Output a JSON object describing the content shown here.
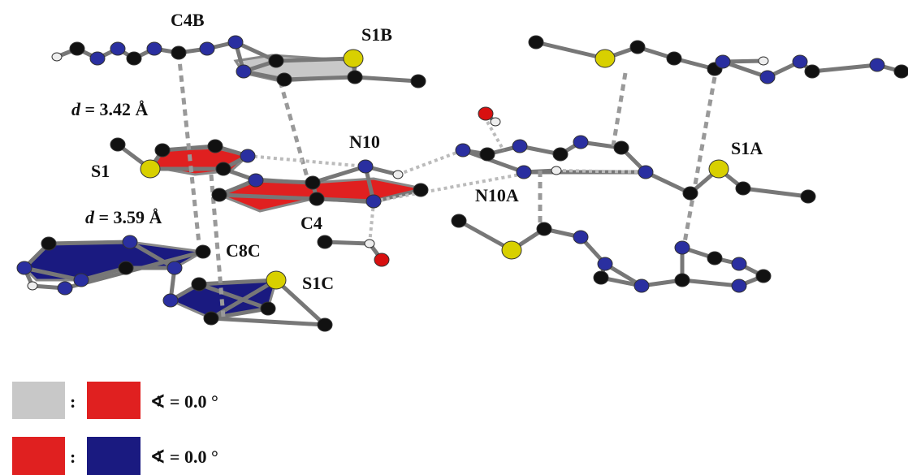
{
  "labels": {
    "c4b": "C4B",
    "s1b": "S1B",
    "n10": "N10",
    "s1": "S1",
    "s1a": "S1A",
    "n10a": "N10A",
    "c4": "C4",
    "c8c": "C8C",
    "s1c": "S1C"
  },
  "distances": [
    {
      "symbol": "d",
      "value": "= 3.42 Å"
    },
    {
      "symbol": "d",
      "value": "= 3.59 Å"
    }
  ],
  "legend": [
    {
      "separator": ":",
      "text": "∢ = 0.0 °"
    },
    {
      "separator": ":",
      "text": "∢ = 0.0 °"
    }
  ]
}
